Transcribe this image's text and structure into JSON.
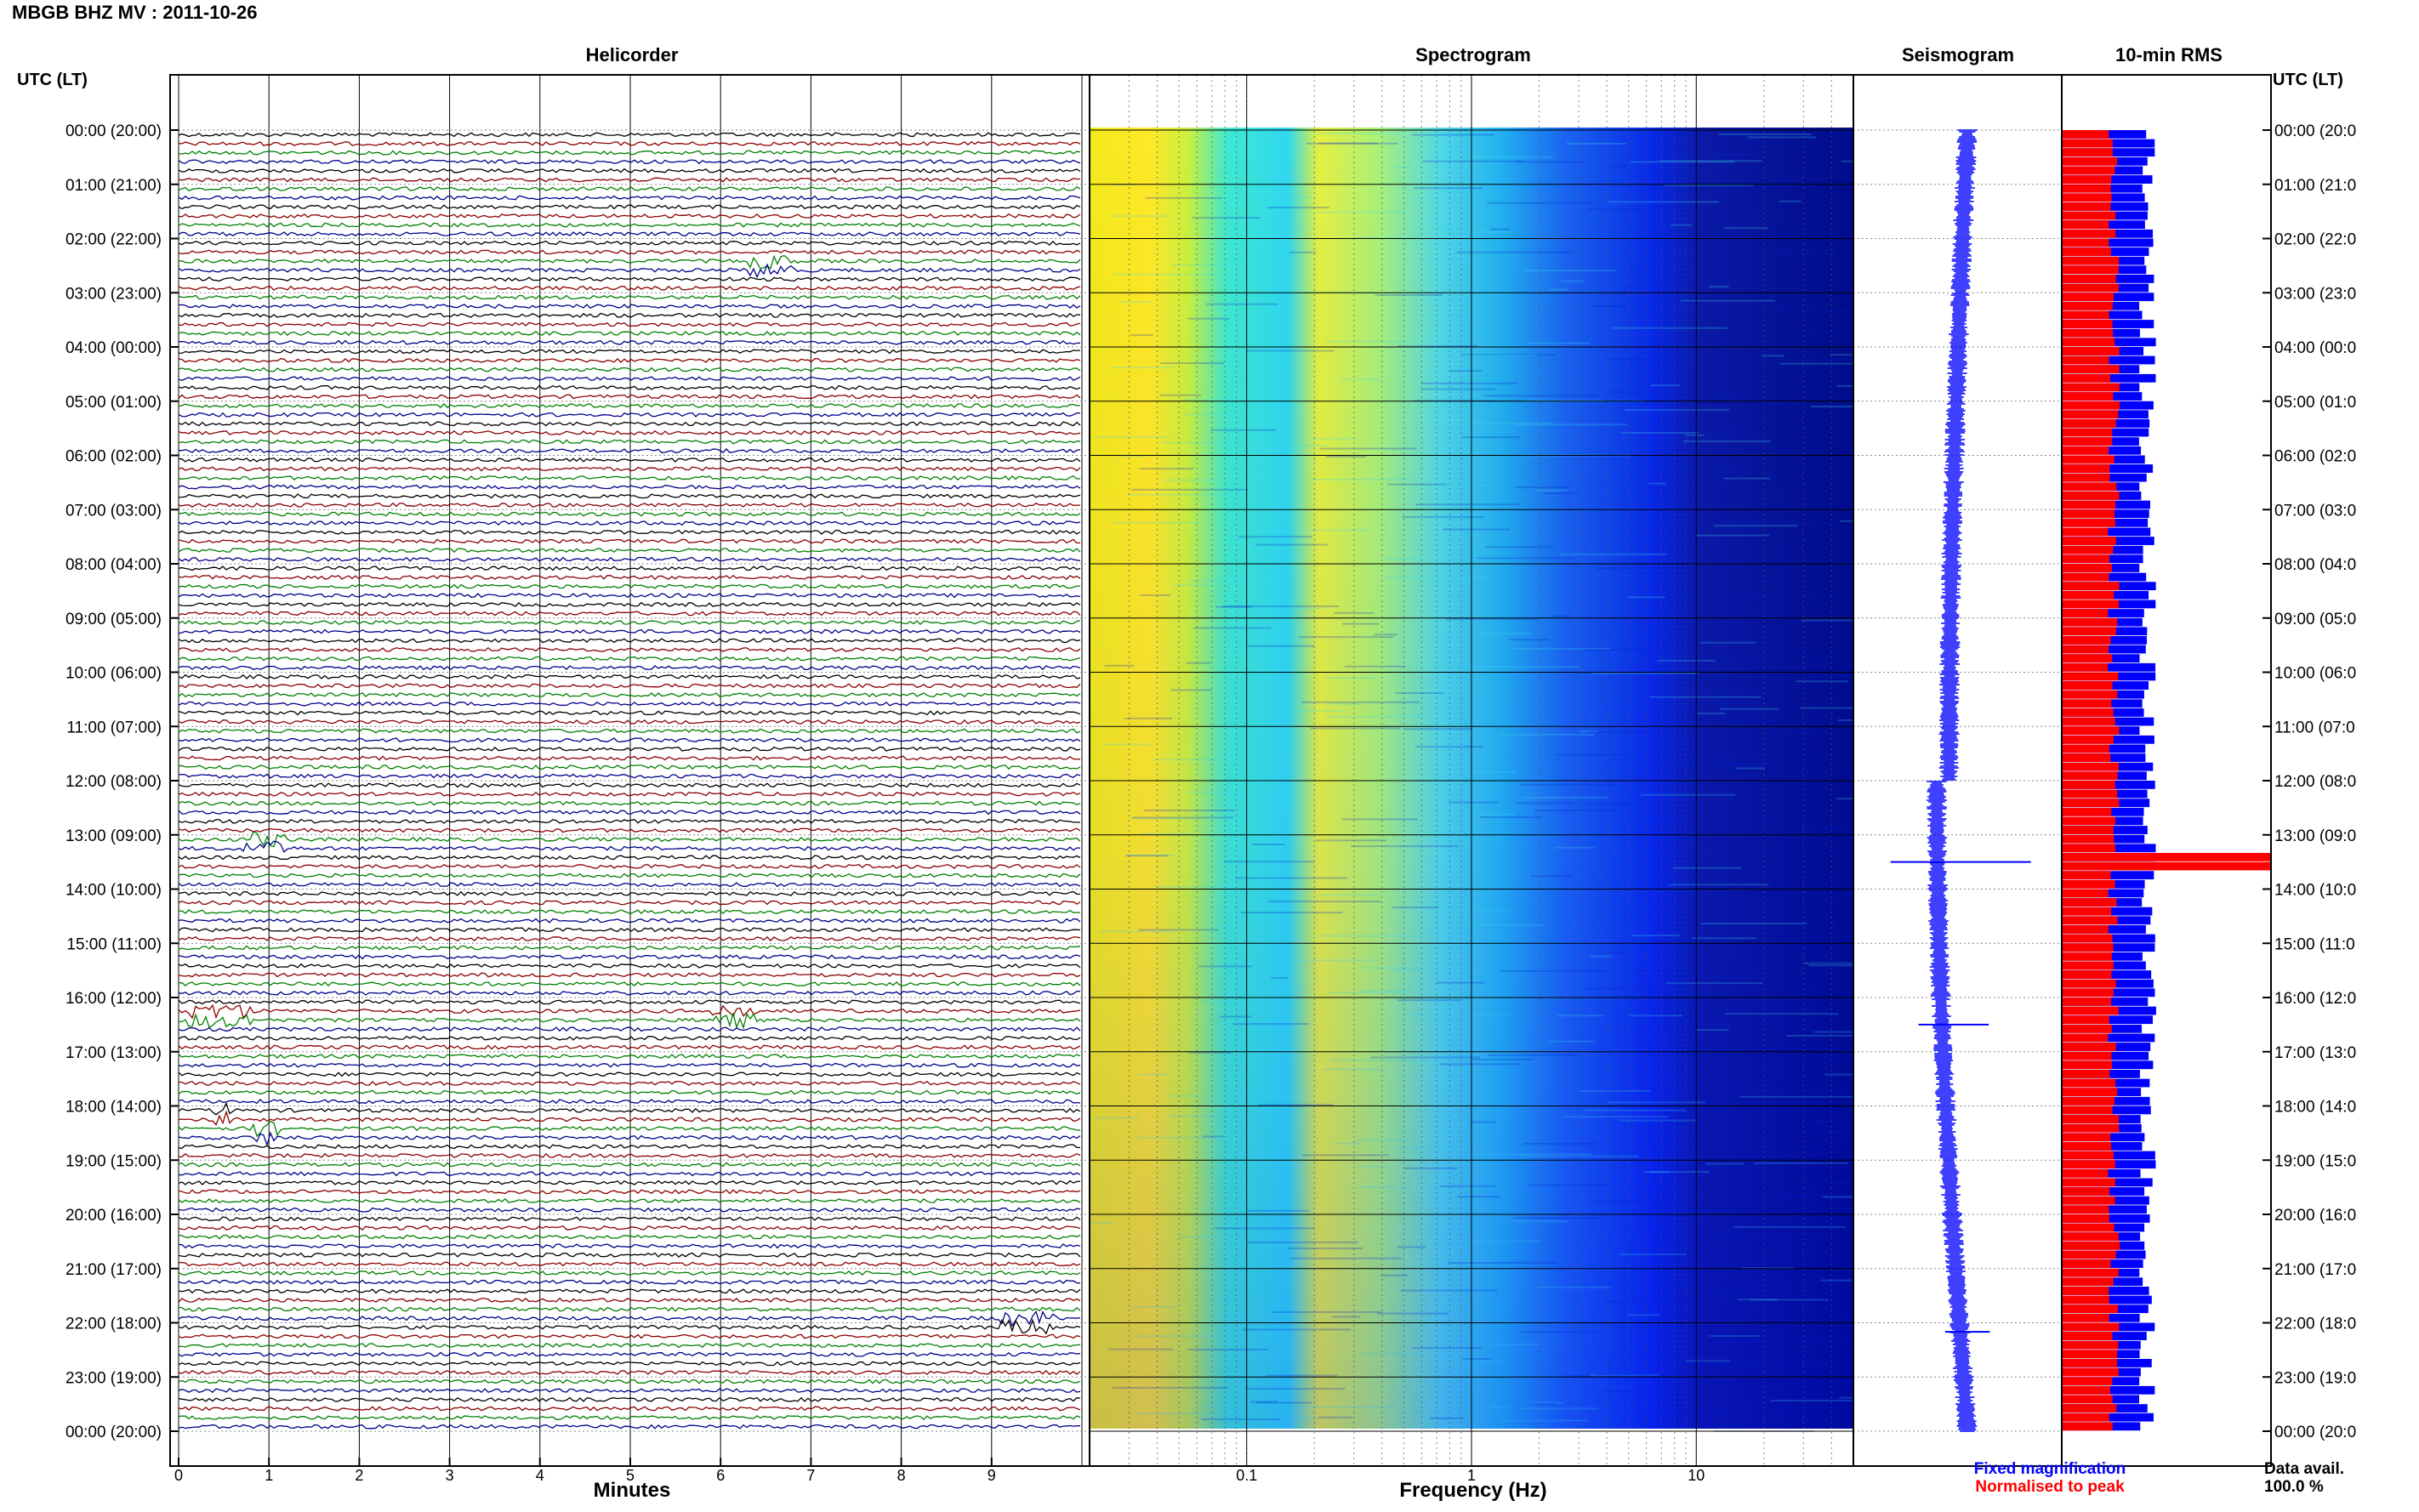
{
  "station_title": "MBGB BHZ MV : 2011-10-26",
  "panels": {
    "helicorder": "Helicorder",
    "spectrogram": "Spectrogram",
    "seismogram": "Seismogram",
    "rms": "10-min RMS"
  },
  "axis_header_left": "UTC (LT)",
  "axis_header_right": "UTC (LT)",
  "x_label_minutes": "Minutes",
  "x_label_frequency": "Frequency (Hz)",
  "legend": {
    "fixed": "Fixed magnification",
    "normalised": "Normalised to peak",
    "fixed_color": "#0000ff",
    "normalised_color": "#ff0000"
  },
  "data_avail_label": "Data avail.",
  "data_avail_value": "100.0 %",
  "colors": {
    "trace_cycle": [
      "#000000",
      "#8b0000",
      "#008000",
      "#00008b"
    ]
  },
  "chart_data": [
    {
      "type": "line",
      "title": "Helicorder",
      "xlabel": "Minutes",
      "x_ticks": [
        "0",
        "1",
        "2",
        "3",
        "4",
        "5",
        "6",
        "7",
        "8",
        "9"
      ],
      "xlim": [
        0,
        10
      ],
      "y_tick_labels_left": [
        "00:00 (20:00)",
        "01:00 (21:00)",
        "02:00 (22:00)",
        "03:00 (23:00)",
        "04:00 (00:00)",
        "05:00 (01:00)",
        "06:00 (02:00)",
        "07:00 (03:00)",
        "08:00 (04:00)",
        "09:00 (05:00)",
        "10:00 (06:00)",
        "11:00 (07:00)",
        "12:00 (08:00)",
        "13:00 (09:00)",
        "14:00 (10:00)",
        "15:00 (11:00)",
        "16:00 (12:00)",
        "17:00 (13:00)",
        "18:00 (14:00)",
        "19:00 (15:00)",
        "20:00 (16:00)",
        "21:00 (17:00)",
        "22:00 (18:00)",
        "23:00 (19:00)",
        "00:00 (20:00)"
      ],
      "y_tick_labels_right": [
        "00:00 (20:0",
        "01:00 (21:0",
        "02:00 (22:0",
        "03:00 (23:0",
        "04:00 (00:0",
        "05:00 (01:0",
        "06:00 (02:0",
        "07:00 (03:0",
        "08:00 (04:0",
        "09:00 (05:0",
        "10:00 (06:0",
        "11:00 (07:0",
        "12:00 (08:0",
        "13:00 (09:0",
        "14:00 (10:0",
        "15:00 (11:0",
        "16:00 (12:0",
        "17:00 (13:0",
        "18:00 (14:0",
        "19:00 (15:0",
        "20:00 (16:0",
        "21:00 (17:0",
        "22:00 (18:0",
        "23:00 (19:0",
        "00:00 (20:0"
      ],
      "traces_per_hour": 6,
      "events": [
        {
          "time": "02:30",
          "minute_start": 6.3,
          "minute_end": 6.8,
          "color": "#00008b"
        },
        {
          "time": "13:10",
          "minute_start": 0.7,
          "minute_end": 1.2,
          "color": "#000000"
        },
        {
          "time": "16:20",
          "minute_start": 0.1,
          "minute_end": 0.8,
          "color": "#008000"
        },
        {
          "time": "16:20",
          "minute_start": 5.9,
          "minute_end": 6.4,
          "color": "#008000"
        },
        {
          "time": "18:10",
          "minute_start": 0.4,
          "minute_end": 0.6,
          "color": "#8b0000"
        },
        {
          "time": "18:30",
          "minute_start": 0.8,
          "minute_end": 1.1,
          "color": "#000000"
        },
        {
          "time": "22:00",
          "minute_start": 9.1,
          "minute_end": 9.7,
          "color": "#8b0000"
        }
      ]
    },
    {
      "type": "heatmap",
      "title": "Spectrogram",
      "xlabel": "Frequency (Hz)",
      "x_scale": "log",
      "xlim": [
        0.02,
        50
      ],
      "x_ticks": [
        "0.1",
        "1",
        "10"
      ],
      "colormap": [
        "#00008b",
        "#0000ff",
        "#1e90ff",
        "#00ffff",
        "#7fff7f",
        "#ffff00"
      ]
    },
    {
      "type": "line",
      "title": "Seismogram",
      "legend": [
        "Fixed magnification"
      ],
      "spikes": [
        {
          "time": "13:30",
          "extent": "large"
        },
        {
          "time": "16:30",
          "extent": "medium"
        },
        {
          "time": "22:10",
          "extent": "small"
        }
      ]
    },
    {
      "type": "bar",
      "title": "10-min RMS",
      "series": [
        {
          "name": "Normalised to peak",
          "color": "#ff0000",
          "typical_fraction": 0.25,
          "peak_time": "13:30",
          "peak_fraction": 1.0
        },
        {
          "name": "Fixed magnification",
          "color": "#0000ff",
          "typical_fraction": 0.41
        }
      ]
    }
  ]
}
